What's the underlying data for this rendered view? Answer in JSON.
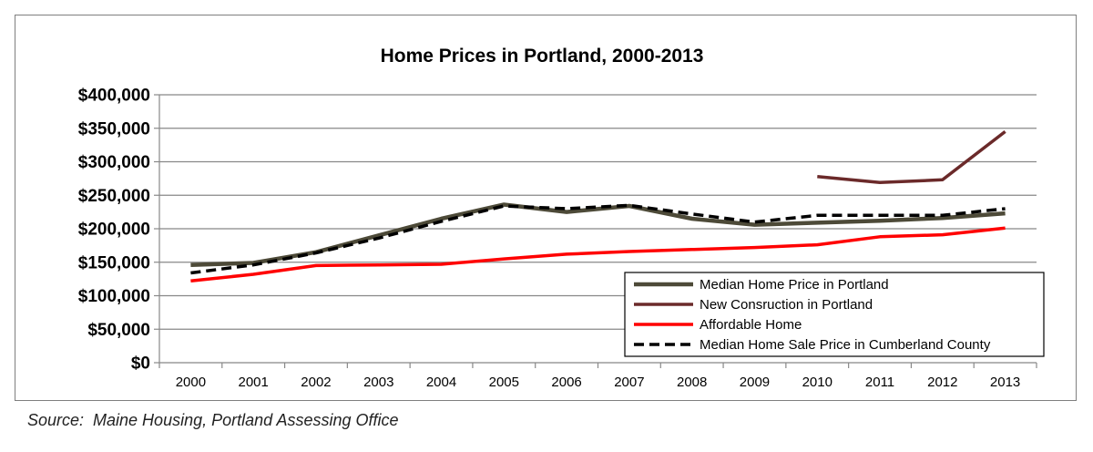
{
  "chart_data": {
    "type": "line",
    "title": "Home Prices in Portland, 2000-2013",
    "xlabel": "",
    "ylabel": "",
    "x": [
      "2000",
      "2001",
      "2002",
      "2003",
      "2004",
      "2005",
      "2006",
      "2007",
      "2008",
      "2009",
      "2010",
      "2011",
      "2012",
      "2013"
    ],
    "ylim": [
      0,
      400000
    ],
    "yticks": [
      0,
      50000,
      100000,
      150000,
      200000,
      250000,
      300000,
      350000,
      400000
    ],
    "ytick_labels": [
      "$0",
      "$50,000",
      "$100,000",
      "$150,000",
      "$200,000",
      "$250,000",
      "$300,000",
      "$350,000",
      "$400,000"
    ],
    "grid": "horizontal",
    "legend_position": "bottom-right",
    "series": [
      {
        "name": "Median Home Price in Portland",
        "color": "#4d4a38",
        "style": "solid",
        "values": [
          146000,
          149000,
          165000,
          190000,
          215000,
          236000,
          225000,
          234000,
          215000,
          206000,
          209000,
          212000,
          216000,
          223000
        ]
      },
      {
        "name": "New Consruction in Portland",
        "color": "#6b2a2a",
        "style": "solid",
        "values": [
          null,
          null,
          null,
          null,
          null,
          null,
          null,
          null,
          null,
          null,
          278000,
          269000,
          273000,
          345000
        ]
      },
      {
        "name": "Affordable Home",
        "color": "#ff0000",
        "style": "solid",
        "values": [
          122000,
          132000,
          145000,
          146000,
          147000,
          155000,
          162000,
          166000,
          169000,
          172000,
          176000,
          188000,
          191000,
          201000
        ]
      },
      {
        "name": "Median Home Sale Price in Cumberland County",
        "color": "#000000",
        "style": "dashed",
        "values": [
          134000,
          146000,
          164000,
          186000,
          211000,
          234000,
          230000,
          235000,
          222000,
          210000,
          220000,
          220000,
          220000,
          230000
        ]
      }
    ]
  },
  "source_note": "Source:  Maine Housing, Portland Assessing Office"
}
